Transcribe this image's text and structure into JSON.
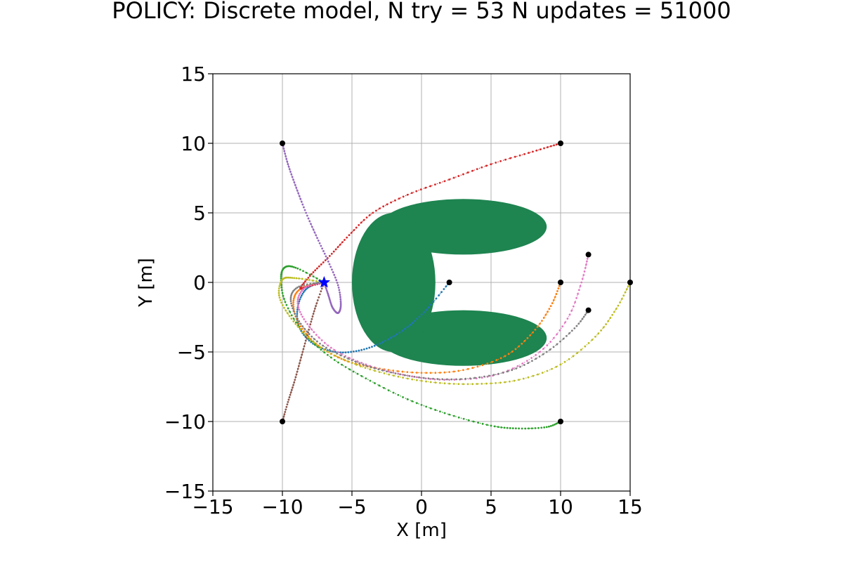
{
  "chart_data": {
    "type": "scatter",
    "title": "POLICY: Discrete model, N try = 53 N updates = 51000",
    "xlabel": "X [m]",
    "ylabel": "Y [m]",
    "xlim": [
      -15,
      15
    ],
    "ylim": [
      -15,
      15
    ],
    "xticks": [
      -15,
      -10,
      -5,
      0,
      5,
      10,
      15
    ],
    "yticks": [
      -15,
      -10,
      -5,
      0,
      5,
      10,
      15
    ],
    "xtick_labels": [
      "−15",
      "−10",
      "−5",
      "0",
      "5",
      "10",
      "15"
    ],
    "ytick_labels": [
      "−15",
      "−10",
      "−5",
      "0",
      "5",
      "10",
      "15"
    ],
    "grid": true,
    "colors": {
      "obstacle": "#1e8450",
      "goal": "#0000ff",
      "start_point": "#000000"
    },
    "goal": {
      "x": -7,
      "y": 0,
      "marker": "star"
    },
    "obstacle": {
      "body": {
        "cx": -2,
        "cy": 0,
        "rx": 3,
        "ry": 5
      },
      "upper_arm": {
        "cx": 3,
        "cy": 4,
        "rx": 6,
        "ry": 2
      },
      "lower_arm": {
        "cx": 3,
        "cy": -4,
        "rx": 6,
        "ry": 2
      }
    },
    "series": [
      {
        "color": "#1f77b4",
        "start": [
          2,
          0
        ],
        "points": [
          [
            2,
            0
          ],
          [
            0.5,
            -1.8
          ],
          [
            -1,
            -3.2
          ],
          [
            -2.8,
            -4.3
          ],
          [
            -4.5,
            -4.9
          ],
          [
            -6.2,
            -5.0
          ],
          [
            -7.8,
            -4.4
          ],
          [
            -8.8,
            -3.2
          ],
          [
            -8.9,
            -1.8
          ],
          [
            -8.4,
            -0.6
          ],
          [
            -7.5,
            -0.05
          ],
          [
            -7,
            0
          ]
        ]
      },
      {
        "color": "#ff7f0e",
        "start": [
          10,
          0
        ],
        "points": [
          [
            10,
            0
          ],
          [
            9.3,
            -1.7
          ],
          [
            8,
            -3.6
          ],
          [
            6,
            -5.3
          ],
          [
            3,
            -6.3
          ],
          [
            0,
            -6.5
          ],
          [
            -3,
            -6.2
          ],
          [
            -5.5,
            -5.6
          ],
          [
            -7.6,
            -4.4
          ],
          [
            -8.9,
            -2.8
          ],
          [
            -9.2,
            -1.3
          ],
          [
            -8.6,
            -0.4
          ],
          [
            -7,
            0
          ]
        ]
      },
      {
        "color": "#2ca02c",
        "start": [
          10,
          -10
        ],
        "points": [
          [
            10,
            -10
          ],
          [
            9,
            -10.4
          ],
          [
            7,
            -10.5
          ],
          [
            5,
            -10.3
          ],
          [
            2,
            -9.5
          ],
          [
            -1,
            -8.4
          ],
          [
            -4,
            -6.9
          ],
          [
            -6.5,
            -5.4
          ],
          [
            -8.5,
            -3.6
          ],
          [
            -9.8,
            -1.4
          ],
          [
            -10.1,
            0.3
          ],
          [
            -9.8,
            1.1
          ],
          [
            -8.9,
            1.0
          ],
          [
            -7,
            0
          ]
        ]
      },
      {
        "color": "#d62728",
        "start": [
          10,
          10
        ],
        "points": [
          [
            10,
            10
          ],
          [
            8,
            9.4
          ],
          [
            5,
            8.5
          ],
          [
            2,
            7.4
          ],
          [
            -1,
            6.3
          ],
          [
            -3.5,
            5.0
          ],
          [
            -5.2,
            3.4
          ],
          [
            -6.6,
            1.9
          ],
          [
            -7.9,
            0.6
          ],
          [
            -8.7,
            -0.4
          ],
          [
            -8.2,
            -0.3
          ],
          [
            -7,
            0
          ]
        ]
      },
      {
        "color": "#9467bd",
        "start": [
          -10,
          10
        ],
        "points": [
          [
            -10,
            10
          ],
          [
            -9.6,
            8.5
          ],
          [
            -9,
            6.8
          ],
          [
            -8.3,
            5.0
          ],
          [
            -7.5,
            3.2
          ],
          [
            -6.7,
            1.5
          ],
          [
            -6,
            -0.2
          ],
          [
            -5.8,
            -1.6
          ],
          [
            -6.0,
            -2.2
          ],
          [
            -6.4,
            -1.8
          ],
          [
            -6.7,
            -0.9
          ],
          [
            -7,
            0
          ]
        ]
      },
      {
        "color": "#8c564b",
        "start": [
          -10,
          -10
        ],
        "points": [
          [
            -10,
            -10
          ],
          [
            -9.6,
            -8.6
          ],
          [
            -9.1,
            -7.0
          ],
          [
            -8.6,
            -5.2
          ],
          [
            -8.1,
            -3.4
          ],
          [
            -7.6,
            -1.7
          ],
          [
            -7,
            0
          ]
        ]
      },
      {
        "color": "#e377c2",
        "start": [
          12,
          2
        ],
        "points": [
          [
            12,
            2
          ],
          [
            11.5,
            0
          ],
          [
            10.5,
            -2.6
          ],
          [
            8.5,
            -5
          ],
          [
            5.5,
            -6.6
          ],
          [
            2,
            -7
          ],
          [
            -1,
            -6.7
          ],
          [
            -4,
            -5.9
          ],
          [
            -6.5,
            -4.7
          ],
          [
            -8.2,
            -3.0
          ],
          [
            -8.9,
            -1.5
          ],
          [
            -8.4,
            -0.4
          ],
          [
            -7,
            0
          ]
        ]
      },
      {
        "color": "#7f7f7f",
        "start": [
          12,
          -2
        ],
        "points": [
          [
            12,
            -2
          ],
          [
            11,
            -3.3
          ],
          [
            9,
            -5
          ],
          [
            6.5,
            -6.3
          ],
          [
            3.5,
            -6.9
          ],
          [
            0.5,
            -6.9
          ],
          [
            -2.5,
            -6.4
          ],
          [
            -5,
            -5.6
          ],
          [
            -7.3,
            -4.4
          ],
          [
            -8.8,
            -2.8
          ],
          [
            -9.4,
            -1.2
          ],
          [
            -8.8,
            -0.3
          ],
          [
            -7,
            0
          ]
        ]
      },
      {
        "color": "#bcbd22",
        "start": [
          15,
          0
        ],
        "points": [
          [
            15,
            0
          ],
          [
            14,
            -1.9
          ],
          [
            12.5,
            -3.9
          ],
          [
            10,
            -5.9
          ],
          [
            7,
            -7
          ],
          [
            4,
            -7.3
          ],
          [
            1,
            -7.2
          ],
          [
            -2,
            -6.7
          ],
          [
            -5,
            -5.8
          ],
          [
            -7.5,
            -4.5
          ],
          [
            -9.2,
            -2.8
          ],
          [
            -10.2,
            -1.1
          ],
          [
            -10,
            0.2
          ],
          [
            -9,
            0.3
          ],
          [
            -7,
            0
          ]
        ]
      }
    ]
  }
}
